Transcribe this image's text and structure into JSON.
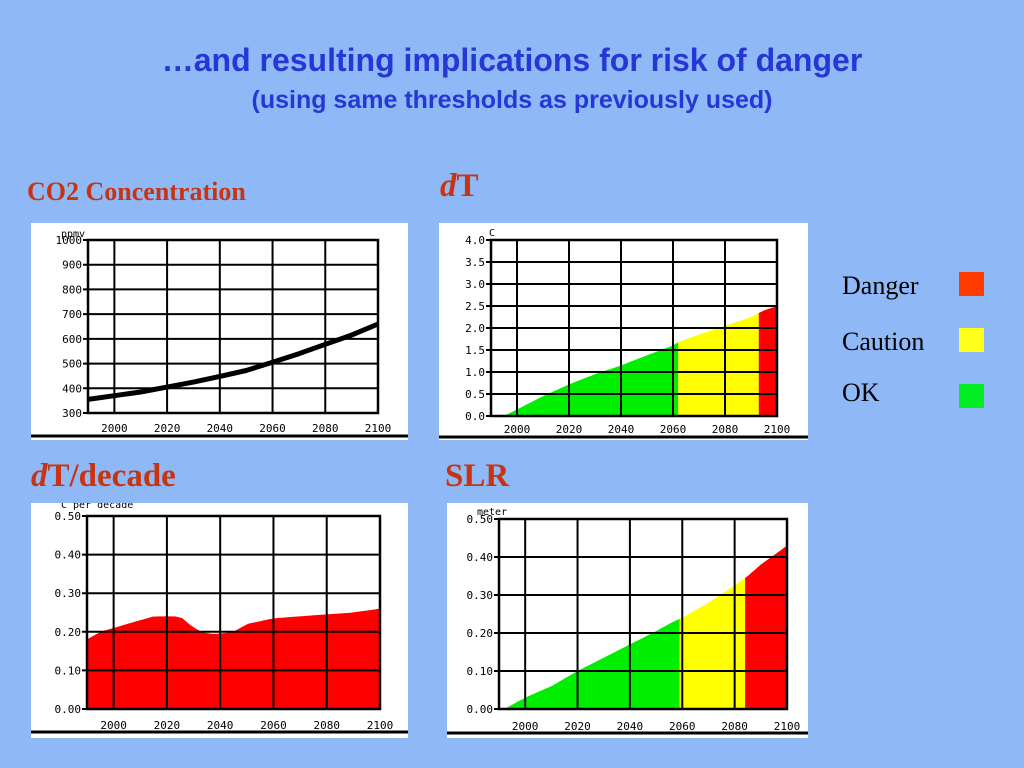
{
  "page": {
    "title": "…and resulting implications for risk of danger",
    "subtitle": "(using same thresholds as previously used)"
  },
  "colors": {
    "background": "#8fb8f6",
    "title": "#2637d6",
    "label": "#c8340f",
    "danger": "#ff0000",
    "caution": "#ffff00",
    "ok": "#00ee00",
    "line": "#000000"
  },
  "legend": [
    {
      "label": "Danger",
      "color": "#ff3b00"
    },
    {
      "label": "Caution",
      "color": "#ffff1a"
    },
    {
      "label": "OK",
      "color": "#00ee22"
    }
  ],
  "chart_data": [
    {
      "id": "co2",
      "type": "line",
      "label": "CO2 Concentration",
      "unit": "ppmv",
      "xticks": [
        2000,
        2020,
        2040,
        2060,
        2080,
        2100
      ],
      "xlim": [
        1990,
        2100
      ],
      "ylim": [
        300,
        1000
      ],
      "yticks": [
        {
          "v": 300,
          "t": "300"
        },
        {
          "v": 400,
          "t": "400"
        },
        {
          "v": 500,
          "t": "500"
        },
        {
          "v": 600,
          "t": "600"
        },
        {
          "v": 700,
          "t": "700"
        },
        {
          "v": 800,
          "t": "800"
        },
        {
          "v": 900,
          "t": "900"
        },
        {
          "v": 1000,
          "t": "1000"
        }
      ],
      "series": [
        {
          "x": [
            1990,
            2000,
            2010,
            2020,
            2030,
            2040,
            2050,
            2060,
            2070,
            2080,
            2090,
            2100
          ],
          "y": [
            355,
            370,
            385,
            405,
            425,
            448,
            472,
            505,
            540,
            578,
            615,
            660
          ]
        }
      ]
    },
    {
      "id": "dt",
      "type": "area",
      "label_italic": "d",
      "label_rest": "T",
      "unit": "C",
      "xticks": [
        2000,
        2020,
        2040,
        2060,
        2080,
        2100
      ],
      "xlim": [
        1990,
        2100
      ],
      "ylim": [
        0,
        4
      ],
      "yticks": [
        {
          "v": 0,
          "t": "0.0"
        },
        {
          "v": 0.5,
          "t": "0.5"
        },
        {
          "v": 1,
          "t": "1.0"
        },
        {
          "v": 1.5,
          "t": "1.5"
        },
        {
          "v": 2,
          "t": "2.0"
        },
        {
          "v": 2.5,
          "t": "2.5"
        },
        {
          "v": 3,
          "t": "3.0"
        },
        {
          "v": 3.5,
          "t": "3.5"
        },
        {
          "v": 4,
          "t": "4.0"
        }
      ],
      "x": [
        1995,
        2000,
        2010,
        2020,
        2030,
        2040,
        2050,
        2060,
        2062,
        2070,
        2080,
        2090,
        2095,
        2100
      ],
      "y": [
        0.0,
        0.15,
        0.45,
        0.72,
        0.95,
        1.15,
        1.38,
        1.6,
        1.68,
        1.85,
        2.05,
        2.25,
        2.4,
        2.5
      ],
      "zones": [
        {
          "from": 1995,
          "to": 2062,
          "color": "#00ee00"
        },
        {
          "from": 2062,
          "to": 2093,
          "color": "#ffff00"
        },
        {
          "from": 2093,
          "to": 2100,
          "color": "#ff0000"
        }
      ]
    },
    {
      "id": "dtdecade",
      "type": "area",
      "label_italic": "d",
      "label_rest": "T/decade",
      "unit": "C per decade",
      "xticks": [
        2000,
        2020,
        2040,
        2060,
        2080,
        2100
      ],
      "xlim": [
        1990,
        2100
      ],
      "ylim": [
        0,
        0.5
      ],
      "yticks": [
        {
          "v": 0,
          "t": "0.00"
        },
        {
          "v": 0.1,
          "t": "0.10"
        },
        {
          "v": 0.2,
          "t": "0.20"
        },
        {
          "v": 0.3,
          "t": "0.30"
        },
        {
          "v": 0.4,
          "t": "0.40"
        },
        {
          "v": 0.5,
          "t": "0.50"
        }
      ],
      "x": [
        1990,
        1995,
        2000,
        2005,
        2010,
        2015,
        2020,
        2025,
        2030,
        2035,
        2040,
        2045,
        2050,
        2060,
        2070,
        2080,
        2090,
        2100
      ],
      "y": [
        0.18,
        0.2,
        0.21,
        0.22,
        0.23,
        0.24,
        0.24,
        0.24,
        0.21,
        0.195,
        0.195,
        0.2,
        0.22,
        0.235,
        0.24,
        0.245,
        0.25,
        0.26
      ],
      "zones": [
        {
          "from": 1990,
          "to": 2100,
          "color": "#ff0000"
        }
      ]
    },
    {
      "id": "slr",
      "type": "area",
      "label": "SLR",
      "unit": "meter",
      "xticks": [
        2000,
        2020,
        2040,
        2060,
        2080,
        2100
      ],
      "xlim": [
        1990,
        2100
      ],
      "ylim": [
        0,
        0.5
      ],
      "yticks": [
        {
          "v": 0,
          "t": "0.00"
        },
        {
          "v": 0.1,
          "t": "0.10"
        },
        {
          "v": 0.2,
          "t": "0.20"
        },
        {
          "v": 0.3,
          "t": "0.30"
        },
        {
          "v": 0.4,
          "t": "0.40"
        },
        {
          "v": 0.5,
          "t": "0.50"
        }
      ],
      "x": [
        1992,
        2000,
        2010,
        2020,
        2030,
        2040,
        2050,
        2058,
        2060,
        2070,
        2080,
        2085,
        2090,
        2100
      ],
      "y": [
        0.0,
        0.03,
        0.06,
        0.1,
        0.135,
        0.17,
        0.205,
        0.235,
        0.24,
        0.28,
        0.325,
        0.35,
        0.38,
        0.43
      ],
      "zones": [
        {
          "from": 1992,
          "to": 2059,
          "color": "#00ee00"
        },
        {
          "from": 2059,
          "to": 2084,
          "color": "#ffff00"
        },
        {
          "from": 2084,
          "to": 2100,
          "color": "#ff0000"
        }
      ]
    }
  ]
}
